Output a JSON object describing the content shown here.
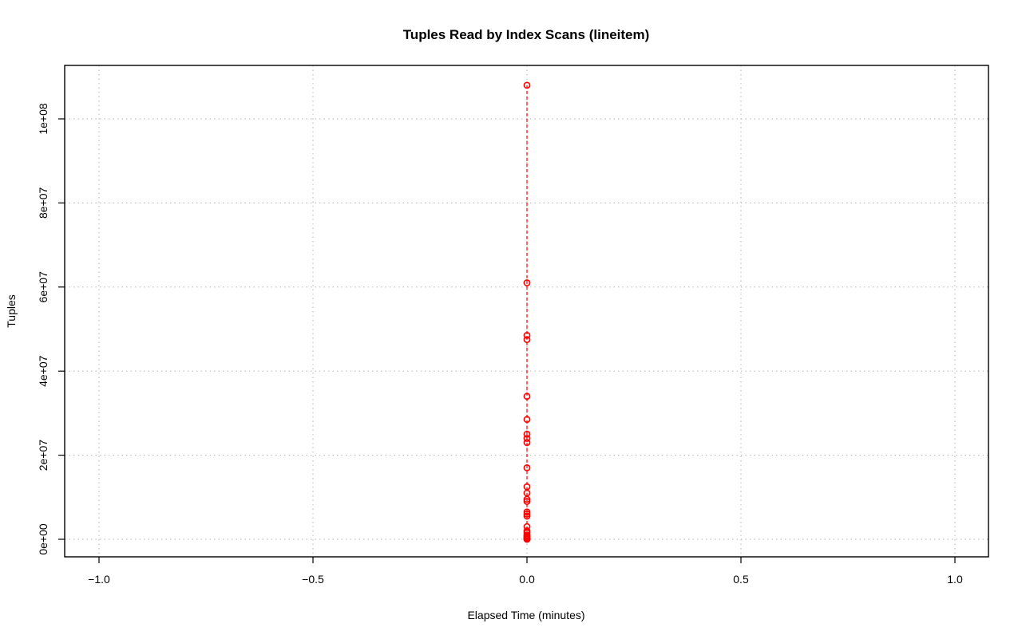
{
  "chart_data": {
    "type": "scatter",
    "title": "Tuples Read by Index Scans (lineitem)",
    "xlabel": "Elapsed Time (minutes)",
    "ylabel": "Tuples",
    "xlim": [
      -1.0,
      1.0
    ],
    "ylim": [
      0,
      108000000
    ],
    "x_ticks": [
      -1.0,
      -0.5,
      0.0,
      0.5,
      1.0
    ],
    "x_tick_labels": [
      "−1.0",
      "−0.5",
      "0.0",
      "0.5",
      "1.0"
    ],
    "y_ticks": [
      0,
      20000000,
      40000000,
      60000000,
      80000000,
      100000000
    ],
    "y_tick_labels": [
      "0e+00",
      "2e+07",
      "4e+07",
      "6e+07",
      "8e+07",
      "1e+08"
    ],
    "grid": true,
    "series": [
      {
        "color": "#ff0000",
        "style": "points-with-dashed-line",
        "x": [
          0,
          0,
          0,
          0,
          0,
          0,
          0,
          0,
          0,
          0,
          0,
          0,
          0,
          0,
          0,
          0,
          0,
          0,
          0,
          0,
          0,
          0,
          0,
          0,
          0,
          0,
          0,
          0,
          0
        ],
        "y": [
          108000000,
          61000000,
          48500000,
          47500000,
          34000000,
          28500000,
          25000000,
          24000000,
          23000000,
          17000000,
          12500000,
          11000000,
          9500000,
          9000000,
          6500000,
          6000000,
          5500000,
          3000000,
          2000000,
          1500000,
          1000000,
          800000,
          600000,
          400000,
          300000,
          200000,
          100000,
          50000,
          0
        ]
      }
    ]
  }
}
